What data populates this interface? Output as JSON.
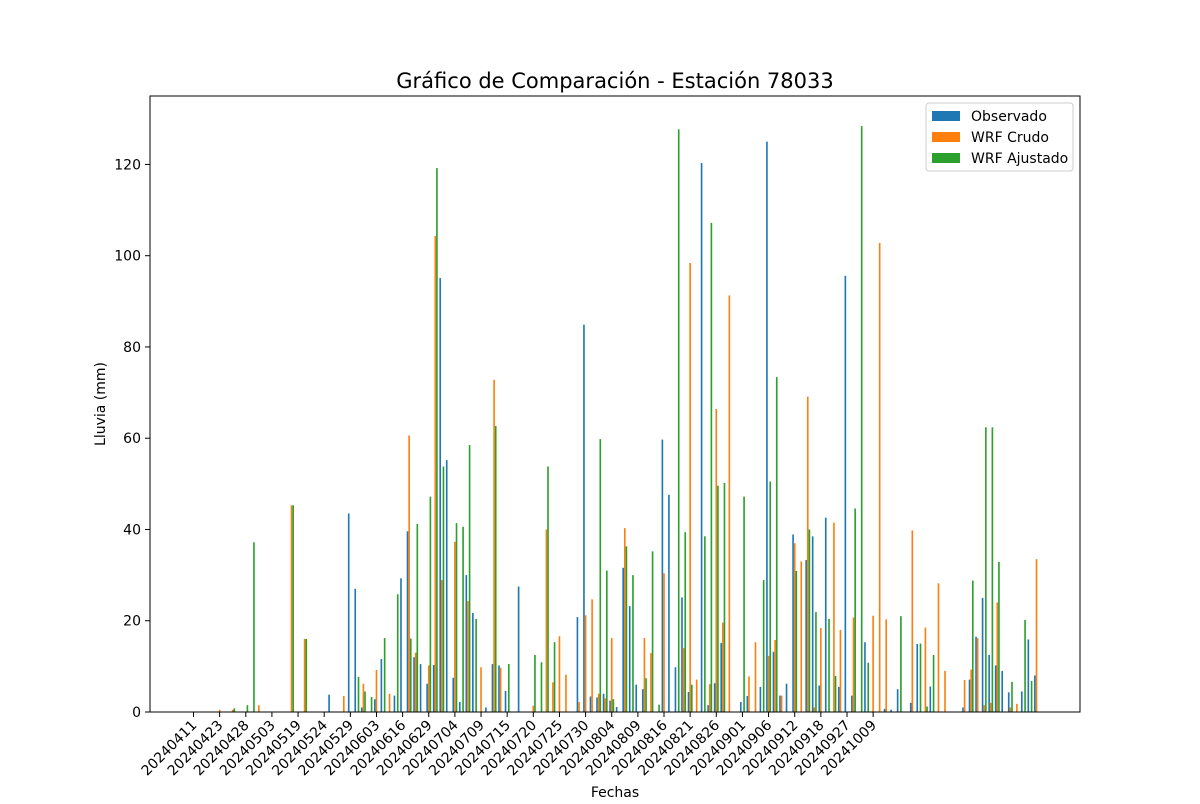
{
  "chart_data": {
    "type": "bar",
    "title": "Gráfico de Comparación - Estación 78033",
    "xlabel": "Fechas",
    "ylabel": "Lluvia (mm)",
    "ylim": [
      0,
      135
    ],
    "yticks": [
      0,
      20,
      40,
      60,
      80,
      100,
      120
    ],
    "grid": false,
    "legend_position": "top-right",
    "x_tick_labels": [
      "20240411",
      "20240423",
      "20240428",
      "20240503",
      "20240519",
      "20240524",
      "20240529",
      "20240603",
      "20240616",
      "20240629",
      "20240704",
      "20240709",
      "20240715",
      "20240720",
      "20240725",
      "20240730",
      "20240804",
      "20240809",
      "20240816",
      "20240821",
      "20240826",
      "20240901",
      "20240906",
      "20240912",
      "20240918",
      "20240927",
      "20241009"
    ],
    "x_tick_indices": [
      0,
      4,
      8,
      12,
      16,
      20,
      24,
      28,
      32,
      36,
      40,
      44,
      48,
      52,
      56,
      60,
      64,
      68,
      72,
      76,
      80,
      84,
      88,
      92,
      96,
      100,
      104
    ],
    "series": [
      {
        "name": "Observado",
        "color": "#1f77b4",
        "values": [
          0,
          0,
          0,
          0,
          0,
          0,
          0,
          0,
          0,
          0,
          0,
          0,
          0,
          0,
          0,
          0,
          0,
          0,
          0,
          0,
          0,
          3.8,
          0,
          0,
          43.5,
          27,
          1,
          0,
          2.8,
          11.6,
          0,
          3.6,
          29.3,
          39.6,
          12,
          10.5,
          6.2,
          10.3,
          95.1,
          55.2,
          7.5,
          2.2,
          30,
          21.7,
          0,
          1,
          10.5,
          10.2,
          4.6,
          0,
          27.5,
          0,
          0,
          0,
          0,
          0,
          0,
          0,
          0,
          20.8,
          84.9,
          3.4,
          3.2,
          4,
          2.5,
          1.1,
          31.6,
          23.2,
          6,
          5,
          0,
          0,
          59.7,
          47.6,
          9.8,
          25.1,
          4.4,
          0,
          120.3,
          1.5,
          6.3,
          15.1,
          0,
          0,
          2.2,
          3.5,
          0,
          5.5,
          125,
          13.2,
          3.6,
          6.2,
          38.9,
          0,
          33.3,
          38.5,
          5.8,
          42.6,
          0,
          5.5,
          95.6,
          3.6,
          0,
          15.3,
          0,
          0,
          0.7,
          0.5,
          5,
          0,
          2,
          14.9,
          0,
          5.6,
          0,
          0,
          0,
          0,
          1,
          7.1,
          16.5,
          25,
          12.5,
          10.2,
          9,
          4.3,
          0,
          4.5,
          15.9,
          8
        ]
      },
      {
        "name": "WRF Crudo",
        "color": "#ff7f0e",
        "values": [
          0,
          0,
          0,
          0,
          0.5,
          0,
          0.5,
          0,
          0,
          0,
          1.5,
          0,
          0,
          0,
          0,
          45.3,
          0,
          16,
          0,
          0,
          0,
          0,
          0,
          3.5,
          0,
          0,
          6.2,
          0,
          9.2,
          0,
          4,
          0,
          0,
          60.6,
          13,
          0,
          10.2,
          104.3,
          28.9,
          0,
          37.3,
          0,
          24.3,
          0,
          9.8,
          0,
          72.8,
          9.7,
          0,
          0,
          0,
          0,
          1.4,
          0,
          40,
          6.5,
          16.6,
          8.2,
          0,
          2.2,
          21.2,
          24.7,
          4,
          3,
          16.2,
          0,
          40.3,
          0,
          0,
          16.2,
          12.9,
          0,
          30.4,
          0,
          0,
          14,
          98.4,
          7.1,
          0,
          6.1,
          66.4,
          19.6,
          91.3,
          0,
          0,
          7.8,
          15.3,
          0,
          12.3,
          15.8,
          3.6,
          0,
          37,
          33,
          69.1,
          1,
          18.4,
          0,
          41.5,
          18,
          0,
          20.7,
          0,
          0,
          21.1,
          102.8,
          20.3,
          0,
          0,
          0,
          39.8,
          0,
          18.5,
          0,
          28.2,
          9,
          0,
          0,
          7,
          9.3,
          16.2,
          1.5,
          2,
          24,
          0,
          1,
          1.8,
          0,
          0,
          33.5,
          0
        ]
      },
      {
        "name": "WRF Ajustado",
        "color": "#2ca02c",
        "values": [
          0,
          0,
          0,
          0,
          0,
          0,
          0.8,
          0,
          1.5,
          37.2,
          0,
          0,
          0,
          0,
          0,
          45.3,
          0,
          16,
          0,
          0,
          0,
          0,
          0,
          0,
          0,
          7.7,
          4.5,
          3.3,
          0,
          16.2,
          0,
          25.8,
          0,
          16.1,
          41.2,
          0,
          47.2,
          119.2,
          53.8,
          0,
          41.4,
          40.6,
          58.5,
          20.4,
          0,
          0,
          62.7,
          0,
          10.5,
          0,
          0,
          0,
          12.5,
          10.9,
          53.8,
          15.3,
          0,
          0,
          0,
          0,
          0,
          0,
          59.8,
          31,
          2.8,
          0,
          36.3,
          30,
          0,
          7.4,
          35.2,
          1.6,
          0,
          0,
          127.7,
          39.4,
          6,
          0,
          38.5,
          107.2,
          49.6,
          50.2,
          0,
          0,
          47.2,
          0,
          0,
          28.9,
          50.5,
          73.4,
          0,
          0,
          30.9,
          0,
          40,
          21.9,
          0,
          20.4,
          7.9,
          0,
          0,
          44.6,
          128.4,
          10.8,
          0,
          0,
          0,
          0,
          21,
          0,
          0,
          15,
          1.2,
          12.5,
          0,
          0,
          0,
          0,
          0,
          28.8,
          0,
          62.4,
          62.4,
          32.9,
          0,
          6.6,
          0,
          20.2,
          6.8,
          0,
          0,
          0,
          0
        ]
      }
    ]
  }
}
